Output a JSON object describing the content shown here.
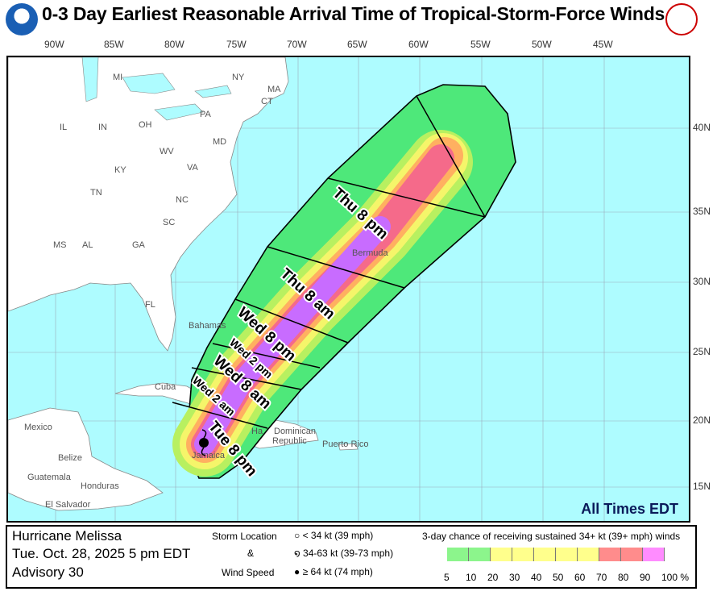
{
  "title": "0-3 Day Earliest Reasonable Arrival Time of Tropical-Storm-Force Winds",
  "logos": {
    "left": "NOAA",
    "right": "National Weather Service"
  },
  "map": {
    "lon_labels": [
      "90W",
      "85W",
      "80W",
      "75W",
      "70W",
      "65W",
      "60W",
      "55W",
      "50W",
      "45W"
    ],
    "lat_labels": [
      "40N",
      "35N",
      "30N",
      "25N",
      "20N",
      "15N"
    ],
    "place_labels": {
      "mi": "MI",
      "ny": "NY",
      "ma": "MA",
      "ct": "CT",
      "pa": "PA",
      "il": "IL",
      "in": "IN",
      "oh": "OH",
      "wv": "WV",
      "md": "MD",
      "va": "VA",
      "ky": "KY",
      "tn": "TN",
      "nc": "NC",
      "sc": "SC",
      "ms": "MS",
      "al": "AL",
      "ga": "GA",
      "fl": "FL",
      "cuba": "Cuba",
      "bahamas": "Bahamas",
      "bermuda": "Bermuda",
      "mexico": "Mexico",
      "belize": "Belize",
      "guatemala": "Guatemala",
      "honduras": "Honduras",
      "el_salvador": "El Salvador",
      "dominican": "Dominican",
      "republic": "Republic",
      "puerto_rico": "Puerto Rico",
      "jamaica": "Jamaica",
      "haiti": "Ha"
    },
    "time_labels": [
      "Tue 8 pm",
      "Wed 2 am",
      "Wed 8 am",
      "Wed 2 pm",
      "Wed 8 pm",
      "Thu 8 am",
      "Thu 8 pm"
    ],
    "time_zone_note": "All Times EDT",
    "storm_symbol": "hurricane-64kt"
  },
  "legend": {
    "storm_name": "Hurricane Melissa",
    "datetime": "Tue. Oct. 28, 2025  5 pm EDT",
    "advisory": "Advisory 30",
    "storm_location_label": "Storm Location",
    "amp": "&",
    "wind_speed_label": "Wind Speed",
    "symbols": [
      "< 34 kt (39 mph)",
      "34-63 kt (39-73 mph)",
      "≥ 64 kt (74 mph)"
    ],
    "scale_title": "3-day chance of receiving sustained 34+ kt (39+ mph) winds",
    "scale_ticks": [
      "5",
      "10",
      "20",
      "30",
      "40",
      "50",
      "60",
      "70",
      "80",
      "90",
      "100 %"
    ],
    "scale_colors": [
      "#8cf58c",
      "#8cf58c",
      "#ffff8c",
      "#ffff8c",
      "#ffff8c",
      "#ffff8c",
      "#ffff8c",
      "#ff8c8c",
      "#ff8c8c",
      "#ff8cff"
    ]
  },
  "colors": {
    "ocean": "#aefcff",
    "land": "#ffffff",
    "green": "#4ee87a",
    "yellow": "#f5f56a",
    "orange": "#ffb060",
    "red": "#f56a8a",
    "magenta": "#c86cff"
  }
}
